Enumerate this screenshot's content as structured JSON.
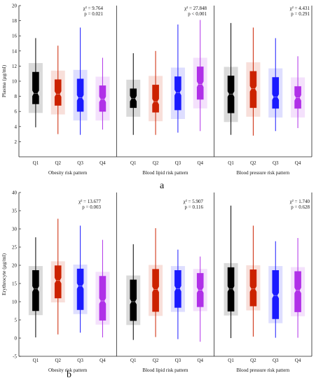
{
  "figure_labels": {
    "a": "a",
    "b": "b"
  },
  "colors": {
    "Q1": "#000000",
    "Q2": "#cc2200",
    "Q3": "#1a1aff",
    "Q4": "#b030e8"
  },
  "chart_data": [
    {
      "type": "box",
      "id": "plasma",
      "ylabel": "Plasma (μg/ml)",
      "ylim": [
        0,
        20
      ],
      "yticks": [
        2,
        4,
        6,
        8,
        10,
        12,
        14,
        16,
        18,
        20
      ],
      "grid": false,
      "categories": [
        "Q1",
        "Q2",
        "Q3",
        "Q4"
      ],
      "groups": [
        {
          "label": "Obesity risk pattern",
          "stats": [
            "χ² = 9.764",
            "p = 0.021"
          ],
          "boxes": [
            {
              "q": "Q1",
              "min": 3.9,
              "q1": 7.0,
              "median": 8.4,
              "q3": 11.2,
              "max": 15.7
            },
            {
              "q": "Q2",
              "min": 3.0,
              "q1": 6.8,
              "median": 8.3,
              "q3": 10.2,
              "max": 14.7
            },
            {
              "q": "Q3",
              "min": 2.9,
              "q1": 6.0,
              "median": 7.8,
              "q3": 10.3,
              "max": 17.1
            },
            {
              "q": "Q4",
              "min": 3.6,
              "q1": 6.0,
              "median": 7.6,
              "q3": 9.4,
              "max": 13.1
            }
          ]
        },
        {
          "label": "Blood lipid risk pattern",
          "stats": [
            "χ² = 27.848",
            "p < 0.001"
          ],
          "boxes": [
            {
              "q": "Q1",
              "min": 2.9,
              "q1": 6.5,
              "median": 7.7,
              "q3": 9.0,
              "max": 13.7
            },
            {
              "q": "Q2",
              "min": 2.9,
              "q1": 5.9,
              "median": 7.3,
              "q3": 9.5,
              "max": 14.0
            },
            {
              "q": "Q3",
              "min": 3.2,
              "q1": 6.2,
              "median": 8.5,
              "q3": 10.6,
              "max": 17.5
            },
            {
              "q": "Q4",
              "min": 3.4,
              "q1": 7.6,
              "median": 9.6,
              "q3": 11.9,
              "max": 18.1
            }
          ]
        },
        {
          "label": "Blood pressure risk pattern",
          "stats": [
            "χ² = 4.431",
            "p = 0.291"
          ],
          "boxes": [
            {
              "q": "Q1",
              "min": 2.9,
              "q1": 5.8,
              "median": 8.3,
              "q3": 10.7,
              "max": 17.7
            },
            {
              "q": "Q2",
              "min": 2.8,
              "q1": 6.5,
              "median": 9.0,
              "q3": 11.3,
              "max": 17.1
            },
            {
              "q": "Q3",
              "min": 3.4,
              "q1": 6.4,
              "median": 7.9,
              "q3": 10.5,
              "max": 15.7
            },
            {
              "q": "Q4",
              "min": 3.8,
              "q1": 6.4,
              "median": 7.8,
              "q3": 9.3,
              "max": 13.3
            }
          ]
        }
      ]
    },
    {
      "type": "box",
      "id": "erythrocyte",
      "ylabel": "Erythrocyte (μg/ml)",
      "ylim": [
        -5,
        40
      ],
      "yticks": [
        -5,
        0,
        5,
        10,
        15,
        20,
        25,
        30,
        35,
        40
      ],
      "grid": false,
      "categories": [
        "Q1",
        "Q2",
        "Q3",
        "Q4"
      ],
      "groups": [
        {
          "label": "Obesity risk pattern",
          "stats": [
            "χ² = 13.677",
            "p = 0.003"
          ],
          "boxes": [
            {
              "q": "Q1",
              "min": 0.2,
              "q1": 7.5,
              "median": 13.5,
              "q3": 18.6,
              "max": 27.7
            },
            {
              "q": "Q2",
              "min": 1.0,
              "q1": 11.0,
              "median": 15.8,
              "q3": 19.9,
              "max": 32.8
            },
            {
              "q": "Q3",
              "min": 1.5,
              "q1": 7.8,
              "median": 14.3,
              "q3": 19.0,
              "max": 30.9
            },
            {
              "q": "Q4",
              "min": 0.2,
              "q1": 4.9,
              "median": 10.2,
              "q3": 17.0,
              "max": 27.0
            }
          ]
        },
        {
          "label": "Blood lipid risk pattern",
          "stats": [
            "χ² = 5.907",
            "p = 0.116"
          ],
          "boxes": [
            {
              "q": "Q1",
              "min": -0.5,
              "q1": 4.8,
              "median": 10.0,
              "q3": 16.0,
              "max": 25.8
            },
            {
              "q": "Q2",
              "min": 0.3,
              "q1": 7.3,
              "median": 13.4,
              "q3": 18.9,
              "max": 30.2
            },
            {
              "q": "Q3",
              "min": -0.3,
              "q1": 8.4,
              "median": 13.6,
              "q3": 18.6,
              "max": 24.3
            },
            {
              "q": "Q4",
              "min": -1.0,
              "q1": 8.6,
              "median": 13.2,
              "q3": 17.8,
              "max": 22.4
            }
          ]
        },
        {
          "label": "Blood pressure risk pattern",
          "stats": [
            "χ² = 1.740",
            "p = 0.628"
          ],
          "boxes": [
            {
              "q": "Q1",
              "min": 0.0,
              "q1": 7.4,
              "median": 13.5,
              "q3": 19.4,
              "max": 36.4
            },
            {
              "q": "Q2",
              "min": 0.4,
              "q1": 8.8,
              "median": 13.5,
              "q3": 18.8,
              "max": 30.9
            },
            {
              "q": "Q3",
              "min": 0.1,
              "q1": 5.3,
              "median": 11.7,
              "q3": 18.6,
              "max": 26.6
            },
            {
              "q": "Q4",
              "min": 0.1,
              "q1": 7.2,
              "median": 13.1,
              "q3": 18.3,
              "max": 27.5
            }
          ]
        }
      ]
    }
  ]
}
